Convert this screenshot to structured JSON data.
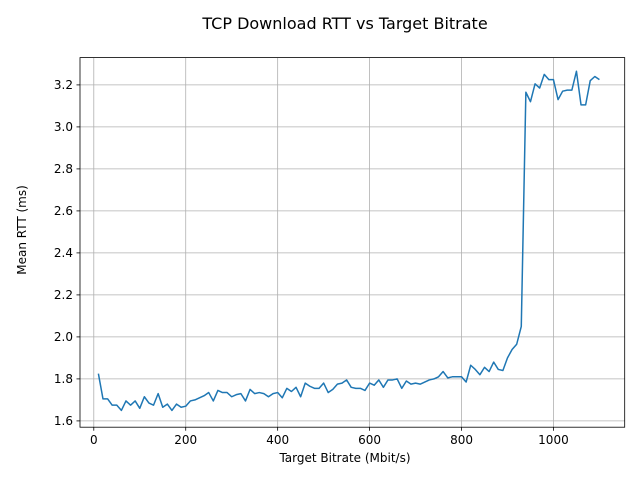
{
  "chart_data": {
    "type": "line",
    "title": "TCP Download RTT vs Target Bitrate",
    "xlabel": "Target Bitrate (Mbit/s)",
    "ylabel": "Mean RTT (ms)",
    "xlim": [
      -30,
      1155
    ],
    "ylim": [
      1.57,
      3.33
    ],
    "grid": true,
    "x_ticks": [
      0,
      200,
      400,
      600,
      800,
      1000
    ],
    "x_tick_labels": [
      "0",
      "200",
      "400",
      "600",
      "800",
      "1000"
    ],
    "y_ticks": [
      1.6,
      1.8,
      2.0,
      2.2,
      2.4,
      2.6,
      2.8,
      3.0,
      3.2
    ],
    "y_tick_labels": [
      "1.6",
      "1.8",
      "2.0",
      "2.2",
      "2.4",
      "2.6",
      "2.8",
      "3.0",
      "3.2"
    ],
    "series": [
      {
        "color": "#1f77b4",
        "x": [
          10,
          20,
          30,
          40,
          50,
          60,
          70,
          80,
          90,
          100,
          110,
          120,
          130,
          140,
          150,
          160,
          170,
          180,
          190,
          200,
          210,
          220,
          230,
          240,
          250,
          260,
          270,
          280,
          290,
          300,
          310,
          320,
          330,
          340,
          350,
          360,
          370,
          380,
          390,
          400,
          410,
          420,
          430,
          440,
          450,
          460,
          470,
          480,
          490,
          500,
          510,
          520,
          530,
          540,
          550,
          560,
          570,
          580,
          590,
          600,
          610,
          620,
          630,
          640,
          650,
          660,
          670,
          680,
          690,
          700,
          710,
          720,
          730,
          740,
          750,
          760,
          770,
          780,
          790,
          800,
          810,
          820,
          830,
          840,
          850,
          860,
          870,
          880,
          890,
          900,
          910,
          920,
          930,
          940,
          950,
          960,
          970,
          980,
          990,
          1000,
          1010,
          1020,
          1030,
          1040,
          1050,
          1060,
          1070,
          1080,
          1090,
          1100
        ],
        "y": [
          1.825,
          1.705,
          1.705,
          1.675,
          1.675,
          1.65,
          1.695,
          1.675,
          1.695,
          1.66,
          1.715,
          1.685,
          1.675,
          1.73,
          1.665,
          1.68,
          1.65,
          1.68,
          1.665,
          1.67,
          1.695,
          1.7,
          1.71,
          1.72,
          1.735,
          1.695,
          1.745,
          1.735,
          1.735,
          1.715,
          1.725,
          1.73,
          1.695,
          1.75,
          1.73,
          1.735,
          1.73,
          1.715,
          1.73,
          1.735,
          1.71,
          1.755,
          1.74,
          1.76,
          1.715,
          1.78,
          1.765,
          1.755,
          1.755,
          1.78,
          1.735,
          1.75,
          1.775,
          1.78,
          1.795,
          1.76,
          1.755,
          1.755,
          1.745,
          1.78,
          1.77,
          1.795,
          1.76,
          1.795,
          1.795,
          1.8,
          1.755,
          1.79,
          1.775,
          1.78,
          1.775,
          1.785,
          1.795,
          1.8,
          1.81,
          1.835,
          1.805,
          1.81,
          1.81,
          1.81,
          1.785,
          1.865,
          1.845,
          1.82,
          1.855,
          1.835,
          1.88,
          1.845,
          1.84,
          1.9,
          1.94,
          1.965,
          2.05,
          3.165,
          3.12,
          3.205,
          3.185,
          3.25,
          3.225,
          3.225,
          3.13,
          3.17,
          3.175,
          3.175,
          3.265,
          3.105,
          3.105,
          3.22,
          3.24,
          3.225
        ]
      }
    ]
  }
}
